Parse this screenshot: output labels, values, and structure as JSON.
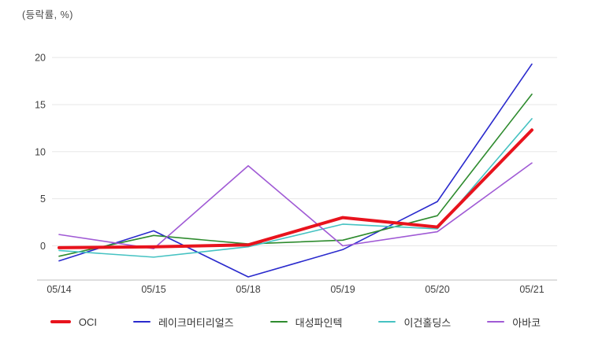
{
  "title": "(등락률, %)",
  "colors": {
    "grid": "#e7e7e7",
    "axis": "#c9c9c9",
    "text": "#404040",
    "legend_text": "#333333"
  },
  "chart_data": {
    "type": "line",
    "title": "(등락률, %)",
    "xlabel": "",
    "ylabel": "등락률 (%)",
    "x": [
      "05/14",
      "05/15",
      "05/18",
      "05/19",
      "05/20",
      "05/21"
    ],
    "yticks": [
      0,
      5,
      10,
      15,
      20
    ],
    "ylim": [
      -3.6,
      20
    ],
    "grid": true,
    "legend_position": "bottom",
    "series": [
      {
        "name": "OCI",
        "color": "#e8131d",
        "width": 4,
        "values": [
          -0.2,
          -0.1,
          0.1,
          3.0,
          2.0,
          12.3
        ]
      },
      {
        "name": "레이크머티리얼즈",
        "color": "#2a2acd",
        "width": 1.6,
        "values": [
          -1.6,
          1.6,
          -3.3,
          -0.4,
          4.7,
          19.3
        ]
      },
      {
        "name": "대성파인텍",
        "color": "#2e8b2e",
        "width": 1.6,
        "values": [
          -1.1,
          1.1,
          0.2,
          0.6,
          3.2,
          16.1
        ]
      },
      {
        "name": "이건홀딩스",
        "color": "#45c2c2",
        "width": 1.6,
        "values": [
          -0.5,
          -1.2,
          -0.1,
          2.3,
          1.8,
          13.5
        ]
      },
      {
        "name": "아바코",
        "color": "#a05ad5",
        "width": 1.6,
        "values": [
          1.2,
          -0.3,
          8.5,
          0.0,
          1.5,
          8.8
        ]
      }
    ]
  }
}
